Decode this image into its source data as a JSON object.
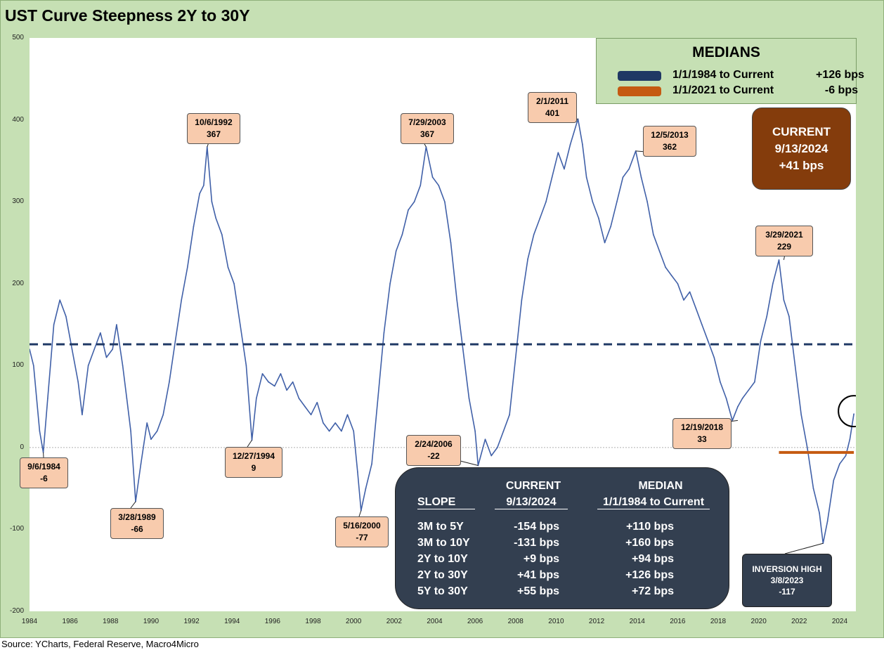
{
  "title": "UST Curve Steepness 2Y to 30Y",
  "source": "Source: YCharts, Federal Reserve, Macro4Micro",
  "colors": {
    "series_line": "#4060a8",
    "median_1984": "#1f3864",
    "median_2021": "#c55a11",
    "callout_fill": "#f8cbad",
    "panel_dark": "#333f50",
    "current_box": "#843c0c",
    "frame_green": "#c6e0b4"
  },
  "medians": {
    "title": "MEDIANS",
    "rows": [
      {
        "label": "1/1/1984 to Current",
        "value": "+126 bps",
        "color": "#1f3864"
      },
      {
        "label": "1/1/2021 to Current",
        "value": "-6 bps",
        "color": "#c55a11"
      }
    ]
  },
  "current": {
    "line1": "CURRENT",
    "line2": "9/13/2024",
    "line3": "+41 bps"
  },
  "callouts": [
    {
      "date": "9/6/1984",
      "value": "-6"
    },
    {
      "date": "3/28/1989",
      "value": "-66"
    },
    {
      "date": "10/6/1992",
      "value": "367"
    },
    {
      "date": "12/27/1994",
      "value": "9"
    },
    {
      "date": "5/16/2000",
      "value": "-77"
    },
    {
      "date": "7/29/2003",
      "value": "367"
    },
    {
      "date": "2/24/2006",
      "value": "-22"
    },
    {
      "date": "2/1/2011",
      "value": "401"
    },
    {
      "date": "12/5/2013",
      "value": "362"
    },
    {
      "date": "12/19/2018",
      "value": "33"
    },
    {
      "date": "3/29/2021",
      "value": "229"
    }
  ],
  "inversion": {
    "line1": "INVERSION HIGH",
    "line2": "3/8/2023",
    "line3": "-117"
  },
  "slope_table": {
    "head_current": "CURRENT",
    "head_median": "MEDIAN",
    "col1": "SLOPE",
    "col2": "9/13/2024",
    "col3": "1/1/1984 to Current",
    "rows": [
      {
        "slope": "3M to 5Y",
        "current": "-154 bps",
        "median": "+110 bps"
      },
      {
        "slope": "3M to 10Y",
        "current": "-131 bps",
        "median": "+160 bps"
      },
      {
        "slope": "2Y to 10Y",
        "current": "+9 bps",
        "median": "+94 bps"
      },
      {
        "slope": "2Y to 30Y",
        "current": "+41 bps",
        "median": "+126 bps"
      },
      {
        "slope": "5Y to 30Y",
        "current": "+55 bps",
        "median": "+72 bps"
      }
    ]
  },
  "chart_data": {
    "type": "line",
    "title": "UST Curve Steepness 2Y to 30Y",
    "xlabel": "",
    "ylabel": "",
    "xlim": [
      1984,
      2024.8
    ],
    "ylim": [
      -200,
      500
    ],
    "x_ticks": [
      "1984",
      "1986",
      "1988",
      "1990",
      "1992",
      "1994",
      "1996",
      "1998",
      "2000",
      "2002",
      "2004",
      "2006",
      "2008",
      "2010",
      "2012",
      "2014",
      "2016",
      "2018",
      "2020",
      "2022",
      "2024"
    ],
    "y_ticks": [
      "500",
      "400",
      "300",
      "200",
      "100",
      "0",
      "-100",
      "-200"
    ],
    "median_lines": [
      {
        "value": 126,
        "from": 1984,
        "to": 2024.7
      },
      {
        "value": -6,
        "from": 2021,
        "to": 2024.7
      }
    ],
    "series": [
      {
        "x": [
          1984.0,
          1984.2,
          1984.5,
          1984.68,
          1984.9,
          1985.2,
          1985.5,
          1985.8,
          1986.1,
          1986.4,
          1986.6,
          1986.9,
          1987.2,
          1987.5,
          1987.8,
          1988.1,
          1988.3,
          1988.6,
          1988.8,
          1989.0,
          1989.24,
          1989.5,
          1989.8,
          1990.0,
          1990.3,
          1990.6,
          1990.9,
          1991.2,
          1991.5,
          1991.8,
          1992.1,
          1992.4,
          1992.6,
          1992.77,
          1993.0,
          1993.2,
          1993.5,
          1993.8,
          1994.1,
          1994.4,
          1994.7,
          1994.98,
          1995.2,
          1995.5,
          1995.8,
          1996.1,
          1996.4,
          1996.7,
          1997.0,
          1997.3,
          1997.6,
          1997.9,
          1998.2,
          1998.5,
          1998.8,
          1999.1,
          1999.4,
          1999.7,
          2000.0,
          2000.2,
          2000.37,
          2000.6,
          2000.9,
          2001.2,
          2001.5,
          2001.8,
          2002.1,
          2002.4,
          2002.7,
          2003.0,
          2003.3,
          2003.58,
          2003.9,
          2004.2,
          2004.5,
          2004.8,
          2005.1,
          2005.4,
          2005.7,
          2006.0,
          2006.15,
          2006.5,
          2006.8,
          2007.1,
          2007.4,
          2007.7,
          2008.0,
          2008.3,
          2008.6,
          2008.9,
          2009.2,
          2009.5,
          2009.8,
          2010.1,
          2010.4,
          2010.7,
          2011.08,
          2011.3,
          2011.5,
          2011.8,
          2012.1,
          2012.4,
          2012.7,
          2013.0,
          2013.3,
          2013.6,
          2013.93,
          2014.2,
          2014.5,
          2014.8,
          2015.1,
          2015.4,
          2015.7,
          2016.0,
          2016.3,
          2016.6,
          2016.9,
          2017.2,
          2017.5,
          2017.8,
          2018.1,
          2018.4,
          2018.7,
          2018.97,
          2019.2,
          2019.5,
          2019.8,
          2020.1,
          2020.4,
          2020.7,
          2021.0,
          2021.24,
          2021.5,
          2021.8,
          2022.1,
          2022.4,
          2022.7,
          2023.0,
          2023.18,
          2023.4,
          2023.7,
          2024.0,
          2024.3,
          2024.5,
          2024.7
        ],
        "y": [
          120,
          100,
          20,
          -6,
          60,
          150,
          180,
          160,
          120,
          80,
          40,
          100,
          120,
          140,
          110,
          120,
          150,
          100,
          60,
          20,
          -66,
          -20,
          30,
          10,
          20,
          40,
          80,
          130,
          180,
          220,
          270,
          310,
          320,
          367,
          300,
          280,
          260,
          220,
          200,
          150,
          100,
          9,
          60,
          90,
          80,
          75,
          90,
          70,
          80,
          60,
          50,
          40,
          55,
          30,
          20,
          30,
          20,
          40,
          20,
          -30,
          -77,
          -50,
          -20,
          60,
          140,
          200,
          240,
          260,
          290,
          300,
          320,
          367,
          330,
          320,
          300,
          250,
          180,
          120,
          60,
          20,
          -22,
          10,
          -10,
          0,
          20,
          40,
          110,
          180,
          230,
          260,
          280,
          300,
          330,
          360,
          340,
          370,
          401,
          370,
          330,
          300,
          280,
          250,
          270,
          300,
          330,
          340,
          362,
          330,
          300,
          260,
          240,
          220,
          210,
          200,
          180,
          190,
          170,
          150,
          130,
          110,
          80,
          60,
          33,
          50,
          60,
          70,
          80,
          130,
          160,
          200,
          229,
          180,
          160,
          100,
          40,
          0,
          -50,
          -80,
          -117,
          -90,
          -40,
          -20,
          -10,
          10,
          41
        ]
      }
    ]
  }
}
